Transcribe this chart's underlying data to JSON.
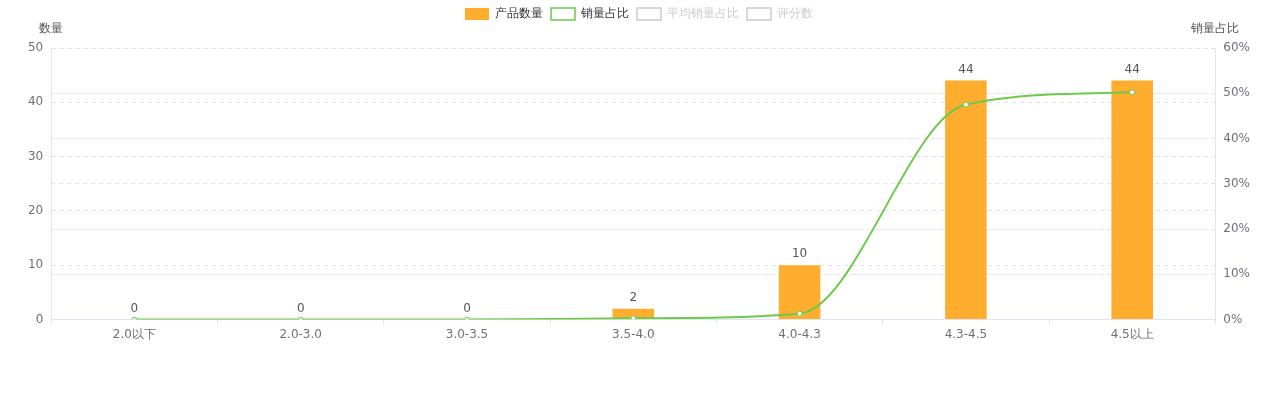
{
  "chart_data": {
    "type": "bar",
    "ylabel": "数量",
    "y2label": "销量占比",
    "categories": [
      "2.0以下",
      "2.0-3.0",
      "3.0-3.5",
      "3.5-4.0",
      "4.0-4.3",
      "4.3-4.5",
      "4.5以上"
    ],
    "series": [
      {
        "name": "产品数量",
        "color": "#ffad2f",
        "values": [
          0,
          0,
          0,
          2,
          10,
          44,
          44
        ],
        "value_labels": [
          "0",
          "0",
          "0",
          "2",
          "10",
          "44",
          "44"
        ]
      },
      {
        "name": "销量占比",
        "type": "line",
        "axis": "y2",
        "color": "#6cc94a",
        "values": [
          0,
          0,
          0,
          0.3,
          1.3,
          47.5,
          50.2
        ]
      },
      {
        "name": "平均销量占比",
        "type": "line",
        "axis": "y2",
        "color": "#cccccc",
        "values": [
          null,
          null,
          null,
          null,
          null,
          null,
          null
        ]
      },
      {
        "name": "评分数",
        "type": "line",
        "axis": "y2",
        "color": "#cccccc",
        "values": [
          null,
          null,
          null,
          null,
          null,
          null,
          null
        ]
      }
    ],
    "ylim": [
      0,
      50
    ],
    "yticks": [
      0,
      10,
      20,
      30,
      40,
      50
    ],
    "y2lim": [
      0,
      60
    ],
    "y2ticks": [
      {
        "value": 0,
        "label": "0%"
      },
      {
        "value": 10,
        "label": "10%"
      },
      {
        "value": 20,
        "label": "20%"
      },
      {
        "value": 30,
        "label": "30%"
      },
      {
        "value": 40,
        "label": "40%"
      },
      {
        "value": 50,
        "label": "50%"
      },
      {
        "value": 60,
        "label": "60%"
      }
    ],
    "grid": true,
    "legend": "top",
    "marker": "circle",
    "line_style": "solid"
  }
}
